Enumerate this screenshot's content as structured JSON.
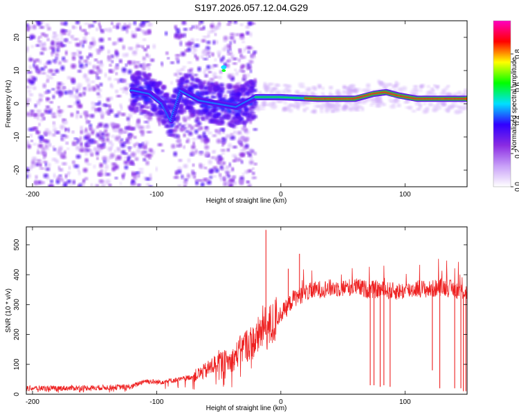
{
  "figure": {
    "title": "S197.2026.057.12.04.G29"
  },
  "chart_data": [
    {
      "type": "heatmap",
      "name": "spectrogram",
      "xlabel": "Height of straight line (km)",
      "ylabel": "Frequency (Hz)",
      "xlim": [
        -205,
        150
      ],
      "ylim": [
        -25,
        25
      ],
      "xticks": [
        -200,
        -100,
        0,
        100
      ],
      "xtick_labels": [
        "-200",
        "-100",
        "0",
        "100"
      ],
      "yticks": [
        -20,
        -10,
        0,
        10,
        20
      ],
      "ytick_labels": [
        "-20",
        "-10",
        "0",
        "10",
        "20"
      ],
      "colorbar": {
        "label": "Normalized spectral amplitude",
        "range": [
          0,
          1
        ],
        "ticks": [
          0.0,
          0.2,
          0.4,
          0.6,
          0.8
        ],
        "tick_labels": [
          "0.0",
          "0.2",
          "0.4",
          "0.6",
          "0.8"
        ],
        "colors": [
          "#ffffff",
          "#c8a0f8",
          "#8a2be2",
          "#3000ff",
          "#00e0ff",
          "#00ff00",
          "#ffff00",
          "#ff0000",
          "#ff00c0"
        ]
      },
      "bright_trace": {
        "x": [
          -118,
          -105,
          -95,
          -88,
          -80,
          -65,
          -50,
          -35,
          -25,
          -20,
          0,
          30,
          60,
          75,
          85,
          95,
          110,
          150
        ],
        "frequency_hz": [
          4,
          3,
          0,
          -5,
          4,
          1,
          0,
          -1,
          1,
          2,
          2,
          1.5,
          1.5,
          3,
          3.5,
          2.5,
          1.5,
          1.5
        ]
      },
      "noise_region": {
        "x_from": -205,
        "x_to": -20
      }
    },
    {
      "type": "line",
      "name": "snr",
      "xlabel": "Height of straight line (km)",
      "ylabel": "SNR (10 * v/v)",
      "xlim": [
        -205,
        150
      ],
      "ylim": [
        0,
        560
      ],
      "xticks": [
        -200,
        -100,
        0,
        100
      ],
      "xtick_labels": [
        "-200",
        "-100",
        "0",
        "100"
      ],
      "yticks": [
        0,
        100,
        200,
        300,
        400,
        500
      ],
      "ytick_labels": [
        "0",
        "100",
        "200",
        "300",
        "400",
        "500"
      ],
      "color": "#ee2020",
      "envelope_x": [
        -205,
        -180,
        -150,
        -120,
        -110,
        -100,
        -90,
        -80,
        -70,
        -60,
        -50,
        -40,
        -30,
        -20,
        -15,
        -10,
        -5,
        0,
        5,
        10,
        15,
        20,
        30,
        40,
        50,
        60,
        70,
        80,
        90,
        100,
        110,
        120,
        130,
        140,
        150
      ],
      "envelope_snr": [
        20,
        20,
        22,
        25,
        45,
        40,
        45,
        50,
        60,
        80,
        110,
        110,
        160,
        180,
        220,
        220,
        240,
        270,
        290,
        320,
        330,
        340,
        350,
        355,
        355,
        360,
        350,
        350,
        345,
        345,
        355,
        350,
        360,
        350,
        340
      ],
      "spikes": [
        {
          "x": -12,
          "snr": 550
        },
        {
          "x": 15,
          "snr": 470
        },
        {
          "x": 6,
          "snr": 420
        },
        {
          "x": 72,
          "snr": 30
        },
        {
          "x": 75,
          "snr": 30
        },
        {
          "x": 80,
          "snr": 25
        },
        {
          "x": 83,
          "snr": 30
        },
        {
          "x": 88,
          "snr": 25
        },
        {
          "x": 122,
          "snr": 80
        },
        {
          "x": 128,
          "snr": 20
        },
        {
          "x": 140,
          "snr": 20
        },
        {
          "x": 145,
          "snr": 20
        },
        {
          "x": 147,
          "snr": 10
        },
        {
          "x": 149,
          "snr": 10
        }
      ]
    }
  ]
}
